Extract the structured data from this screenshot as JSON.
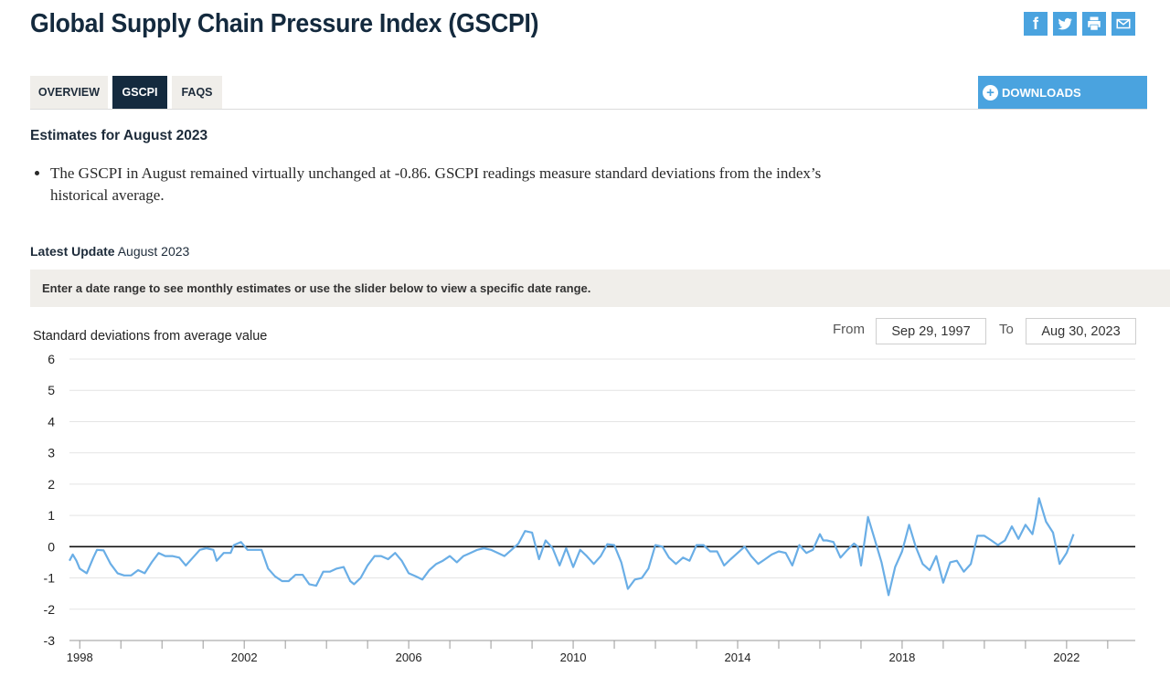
{
  "page": {
    "title": "Global Supply Chain Pressure Index (GSCPI)"
  },
  "share": {
    "facebook": "f",
    "icons": [
      "facebook-icon",
      "twitter-icon",
      "print-icon",
      "email-icon"
    ]
  },
  "tabs": [
    {
      "label": "OVERVIEW",
      "active": false
    },
    {
      "label": "GSCPI",
      "active": true
    },
    {
      "label": "FAQS",
      "active": false
    }
  ],
  "downloads": {
    "label": "DOWNLOADS",
    "icon": "plus-circle-icon"
  },
  "estimates": {
    "heading": "Estimates for August 2023",
    "bullet": "The GSCPI in August remained virtually unchanged at -0.86. GSCPI readings measure standard deviations from the index’s historical average."
  },
  "latest_update": {
    "label": "Latest Update",
    "value": "August 2023"
  },
  "instruction": "Enter a date range to see monthly estimates or use the slider below to view a specific date range.",
  "date_range": {
    "from_label": "From",
    "from_value": "Sep 29, 1997",
    "to_label": "To",
    "to_value": "Aug 30, 2023"
  },
  "colors": {
    "navy": "#142a3e",
    "accent": "#4aa3df",
    "line": "#6aaee6"
  },
  "chart_data": {
    "type": "line",
    "title": "",
    "ylabel": "Standard deviations from average value",
    "xlabel": "",
    "ylim": [
      -3,
      6
    ],
    "xlim": [
      1997.75,
      2023.67
    ],
    "yticks": [
      "6",
      "5",
      "4",
      "3",
      "2",
      "1",
      "0",
      "-1",
      "-2",
      "-3"
    ],
    "xticks": [
      "1998",
      "2002",
      "2006",
      "2010",
      "2014",
      "2018",
      "2022"
    ],
    "zero_line": true,
    "series": [
      {
        "name": "GSCPI",
        "points": [
          [
            1997.75,
            -0.45
          ],
          [
            1997.83,
            -0.25
          ],
          [
            1997.92,
            -0.45
          ],
          [
            1998.0,
            -0.7
          ],
          [
            1998.17,
            -0.85
          ],
          [
            1998.33,
            -0.35
          ],
          [
            1998.42,
            -0.1
          ],
          [
            1998.58,
            -0.12
          ],
          [
            1998.75,
            -0.55
          ],
          [
            1998.92,
            -0.85
          ],
          [
            1999.08,
            -0.92
          ],
          [
            1999.25,
            -0.92
          ],
          [
            1999.42,
            -0.75
          ],
          [
            1999.58,
            -0.85
          ],
          [
            1999.75,
            -0.5
          ],
          [
            1999.92,
            -0.2
          ],
          [
            2000.08,
            -0.3
          ],
          [
            2000.25,
            -0.3
          ],
          [
            2000.42,
            -0.35
          ],
          [
            2000.58,
            -0.6
          ],
          [
            2000.75,
            -0.35
          ],
          [
            2000.92,
            -0.1
          ],
          [
            2001.08,
            -0.05
          ],
          [
            2001.25,
            -0.1
          ],
          [
            2001.33,
            -0.45
          ],
          [
            2001.5,
            -0.2
          ],
          [
            2001.67,
            -0.2
          ],
          [
            2001.75,
            0.05
          ],
          [
            2001.92,
            0.15
          ],
          [
            2002.08,
            -0.1
          ],
          [
            2002.25,
            -0.1
          ],
          [
            2002.42,
            -0.1
          ],
          [
            2002.58,
            -0.7
          ],
          [
            2002.75,
            -0.95
          ],
          [
            2002.92,
            -1.1
          ],
          [
            2003.08,
            -1.1
          ],
          [
            2003.25,
            -0.9
          ],
          [
            2003.42,
            -0.9
          ],
          [
            2003.58,
            -1.2
          ],
          [
            2003.75,
            -1.25
          ],
          [
            2003.92,
            -0.8
          ],
          [
            2004.08,
            -0.8
          ],
          [
            2004.25,
            -0.7
          ],
          [
            2004.42,
            -0.65
          ],
          [
            2004.58,
            -1.1
          ],
          [
            2004.67,
            -1.2
          ],
          [
            2004.83,
            -1.0
          ],
          [
            2005.0,
            -0.6
          ],
          [
            2005.17,
            -0.3
          ],
          [
            2005.33,
            -0.3
          ],
          [
            2005.5,
            -0.4
          ],
          [
            2005.67,
            -0.2
          ],
          [
            2005.83,
            -0.45
          ],
          [
            2006.0,
            -0.85
          ],
          [
            2006.17,
            -0.95
          ],
          [
            2006.33,
            -1.05
          ],
          [
            2006.5,
            -0.75
          ],
          [
            2006.67,
            -0.55
          ],
          [
            2006.83,
            -0.45
          ],
          [
            2007.0,
            -0.3
          ],
          [
            2007.17,
            -0.5
          ],
          [
            2007.33,
            -0.3
          ],
          [
            2007.5,
            -0.2
          ],
          [
            2007.67,
            -0.1
          ],
          [
            2007.83,
            -0.05
          ],
          [
            2008.0,
            -0.1
          ],
          [
            2008.17,
            -0.2
          ],
          [
            2008.33,
            -0.3
          ],
          [
            2008.5,
            -0.1
          ],
          [
            2008.67,
            0.1
          ],
          [
            2008.83,
            0.5
          ],
          [
            2009.0,
            0.45
          ],
          [
            2009.17,
            -0.4
          ],
          [
            2009.33,
            0.2
          ],
          [
            2009.5,
            -0.05
          ],
          [
            2009.67,
            -0.6
          ],
          [
            2009.83,
            -0.05
          ],
          [
            2010.0,
            -0.65
          ],
          [
            2010.17,
            -0.1
          ],
          [
            2010.33,
            -0.3
          ],
          [
            2010.5,
            -0.55
          ],
          [
            2010.67,
            -0.3
          ],
          [
            2010.83,
            0.08
          ],
          [
            2011.0,
            0.05
          ],
          [
            2011.17,
            -0.5
          ],
          [
            2011.33,
            -1.35
          ],
          [
            2011.5,
            -1.05
          ],
          [
            2011.67,
            -1.0
          ],
          [
            2011.83,
            -0.7
          ],
          [
            2012.0,
            0.05
          ],
          [
            2012.17,
            0.0
          ],
          [
            2012.33,
            -0.35
          ],
          [
            2012.5,
            -0.55
          ],
          [
            2012.67,
            -0.35
          ],
          [
            2012.83,
            -0.45
          ],
          [
            2013.0,
            0.05
          ],
          [
            2013.17,
            0.05
          ],
          [
            2013.33,
            -0.15
          ],
          [
            2013.5,
            -0.15
          ],
          [
            2013.67,
            -0.6
          ],
          [
            2013.83,
            -0.4
          ],
          [
            2014.0,
            -0.2
          ],
          [
            2014.17,
            0.0
          ],
          [
            2014.33,
            -0.3
          ],
          [
            2014.5,
            -0.55
          ],
          [
            2014.67,
            -0.4
          ],
          [
            2014.83,
            -0.25
          ],
          [
            2015.0,
            -0.15
          ],
          [
            2015.17,
            -0.2
          ],
          [
            2015.33,
            -0.6
          ],
          [
            2015.5,
            0.05
          ],
          [
            2015.67,
            -0.2
          ],
          [
            2015.83,
            -0.1
          ],
          [
            2016.0,
            0.4
          ],
          [
            2016.08,
            0.2
          ],
          [
            2016.17,
            0.2
          ],
          [
            2016.33,
            0.15
          ],
          [
            2016.5,
            -0.35
          ],
          [
            2016.67,
            -0.1
          ],
          [
            2016.83,
            0.1
          ],
          [
            2016.92,
            0.0
          ],
          [
            2017.0,
            -0.6
          ],
          [
            2017.17,
            0.95
          ],
          [
            2017.33,
            0.25
          ],
          [
            2017.5,
            -0.5
          ],
          [
            2017.67,
            -1.55
          ],
          [
            2017.83,
            -0.65
          ],
          [
            2018.0,
            -0.15
          ],
          [
            2018.17,
            0.7
          ],
          [
            2018.33,
            0.0
          ],
          [
            2018.5,
            -0.55
          ],
          [
            2018.67,
            -0.75
          ],
          [
            2018.83,
            -0.3
          ],
          [
            2019.0,
            -1.15
          ],
          [
            2019.17,
            -0.5
          ],
          [
            2019.33,
            -0.45
          ],
          [
            2019.5,
            -0.8
          ],
          [
            2019.67,
            -0.55
          ],
          [
            2019.83,
            0.35
          ],
          [
            2020.0,
            0.35
          ],
          [
            2020.17,
            0.2
          ],
          [
            2020.33,
            0.05
          ],
          [
            2020.5,
            0.2
          ],
          [
            2020.67,
            0.65
          ],
          [
            2020.83,
            0.25
          ],
          [
            2021.0,
            0.7
          ],
          [
            2021.17,
            0.4
          ],
          [
            2021.25,
            0.9
          ],
          [
            2021.33,
            1.55
          ],
          [
            2021.5,
            0.8
          ],
          [
            2021.67,
            0.45
          ],
          [
            2021.83,
            -0.55
          ],
          [
            2022.0,
            -0.2
          ],
          [
            2022.17,
            0.4
          ]
        ]
      }
    ]
  }
}
